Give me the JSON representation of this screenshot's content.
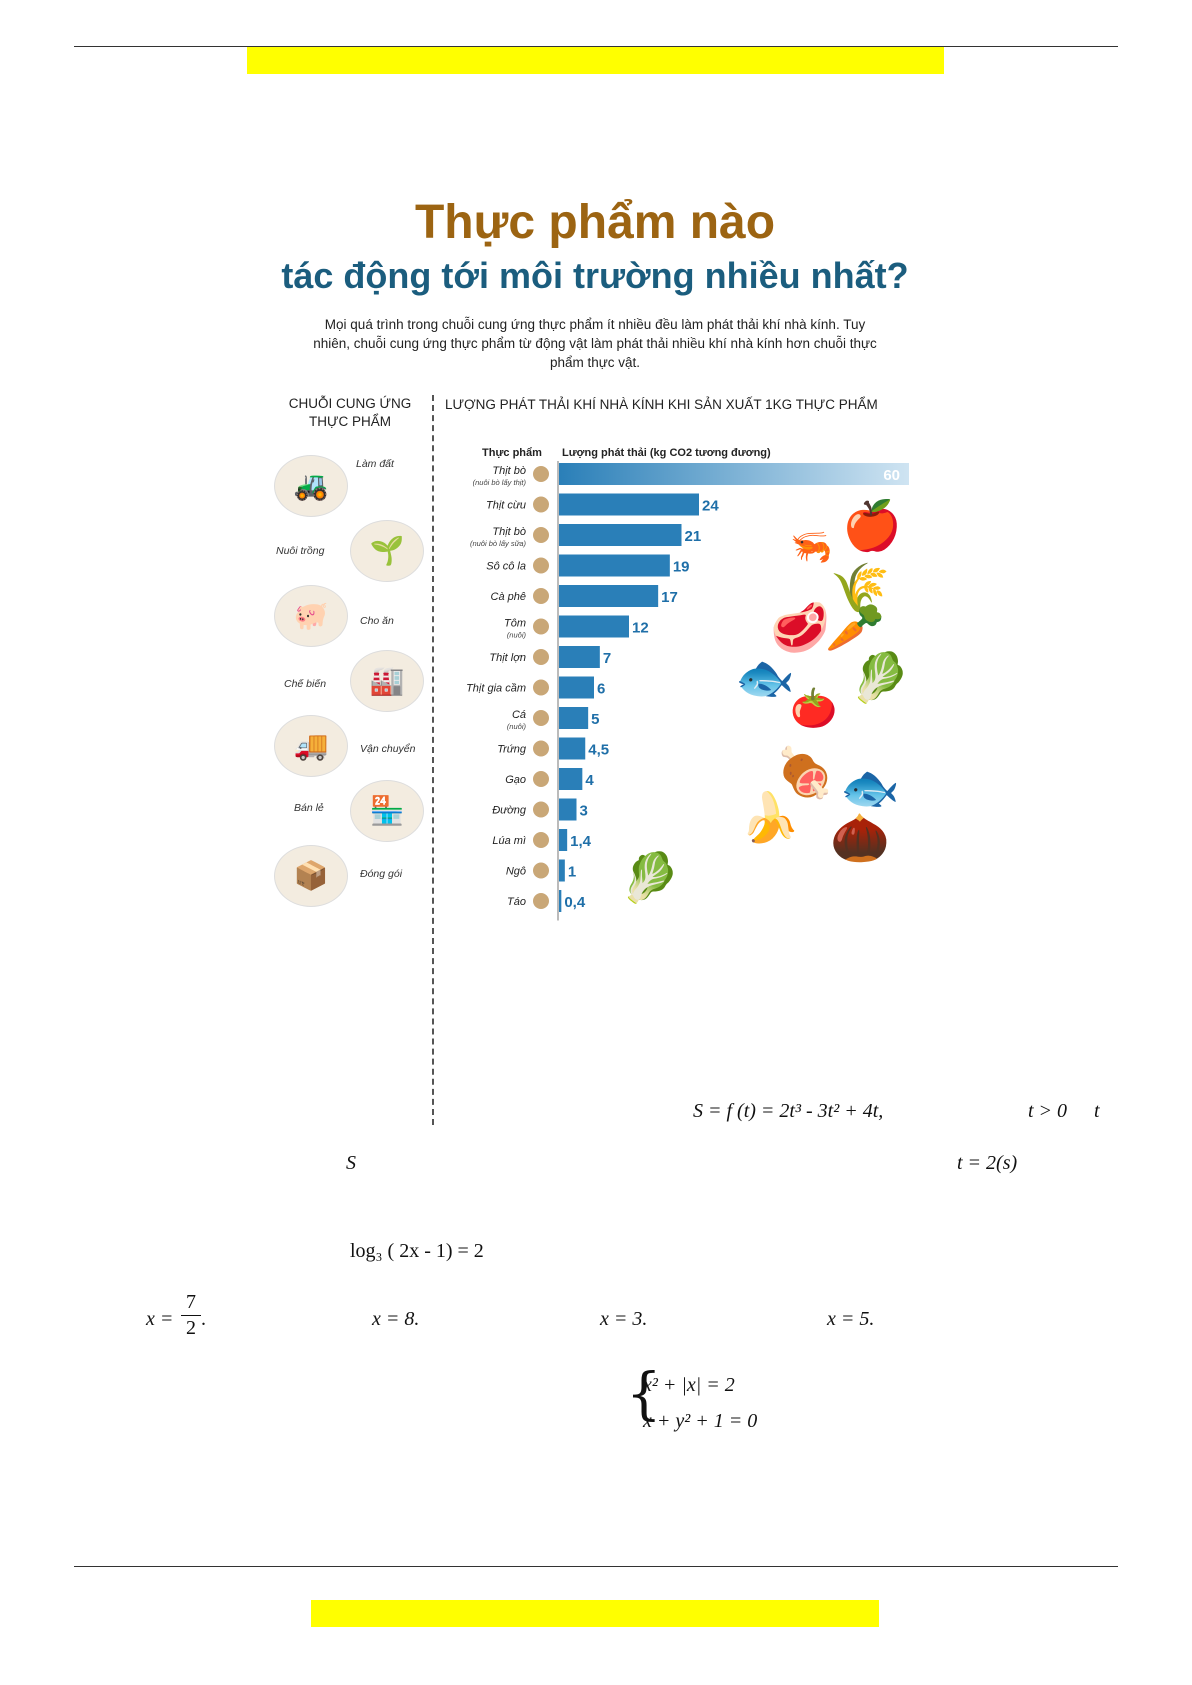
{
  "infographic": {
    "title_line1": "Thực phẩm nào",
    "title_line2": "tác động tới môi trường nhiều nhất?",
    "intro": "Mọi quá trình trong chuỗi cung ứng thực phẩm ít nhiều đều làm phát thải khí nhà kính. Tuy nhiên, chuỗi cung ứng thực phẩm từ động vật làm phát thải nhiều khí nhà kính hơn chuỗi thực phẩm thực vật.",
    "chain_title": "CHUỖI CUNG ỨNG THỰC PHẨM",
    "chain_steps": [
      "Làm đất",
      "Nuôi trồng",
      "Cho ăn",
      "Chế biến",
      "Vận chuyển",
      "Bán lẻ",
      "Đóng gói"
    ],
    "chain_icons": [
      "tractor-icon",
      "planting-icon",
      "feeding-icon",
      "processing-icon",
      "truck-icon",
      "retail-stall-icon",
      "packing-icon"
    ]
  },
  "chart_data": {
    "type": "bar",
    "orientation": "horizontal",
    "title": "LƯỢNG PHÁT THẢI KHÍ NHÀ KÍNH KHI SẢN XUẤT 1KG THỰC PHẨM",
    "category_header": "Thực phẩm",
    "value_header": "Lượng phát thải (kg CO2 tương đương)",
    "categories": [
      {
        "name": "Thịt bò",
        "note": "(nuôi bò lấy thịt)"
      },
      {
        "name": "Thịt cừu",
        "note": ""
      },
      {
        "name": "Thịt bò",
        "note": "(nuôi bò lấy sữa)"
      },
      {
        "name": "Sô cô la",
        "note": ""
      },
      {
        "name": "Cà phê",
        "note": ""
      },
      {
        "name": "Tôm",
        "note": "(nuôi)"
      },
      {
        "name": "Thịt lợn",
        "note": ""
      },
      {
        "name": "Thịt gia cầm",
        "note": ""
      },
      {
        "name": "Cá",
        "note": "(nuôi)"
      },
      {
        "name": "Trứng",
        "note": ""
      },
      {
        "name": "Gạo",
        "note": ""
      },
      {
        "name": "Đường",
        "note": ""
      },
      {
        "name": "Lúa mì",
        "note": ""
      },
      {
        "name": "Ngô",
        "note": ""
      },
      {
        "name": "Táo",
        "note": ""
      }
    ],
    "values": [
      60,
      24,
      21,
      19,
      17,
      12,
      7,
      6,
      5,
      4.5,
      4,
      3,
      1.4,
      1,
      0.4
    ],
    "value_labels": [
      "60",
      "24",
      "21",
      "19",
      "17",
      "12",
      "7",
      "6",
      "5",
      "4,5",
      "4",
      "3",
      "1,4",
      "1",
      "0,4"
    ],
    "xlim": [
      0,
      60
    ],
    "bar_color": "#2a7fb8",
    "bar_color_light": "#cfe4f2",
    "label_color": "#1f6fa8"
  },
  "math": {
    "q1_formula": "S = f (t) = 2t³ - 3t² + 4t,",
    "q1_cond": "t > 0",
    "q1_t": "t",
    "q1_S": "S",
    "q1_time": "t = 2(s)",
    "q2_eq": "log₃ ( 2x - 1) = 2",
    "opt_a_lhs": "x =",
    "opt_a_num": "7",
    "opt_a_den": "2",
    "opt_a_end": ".",
    "opt_b": "x = 8.",
    "opt_c": "x = 3.",
    "opt_d": "x = 5.",
    "sys_line1": "x² + |x| = 2",
    "sys_line2": "x + y² + 1 = 0"
  },
  "colors": {
    "highlight": "#ffff00",
    "title_brown": "#9c6412",
    "title_blue": "#1b5d7e"
  }
}
